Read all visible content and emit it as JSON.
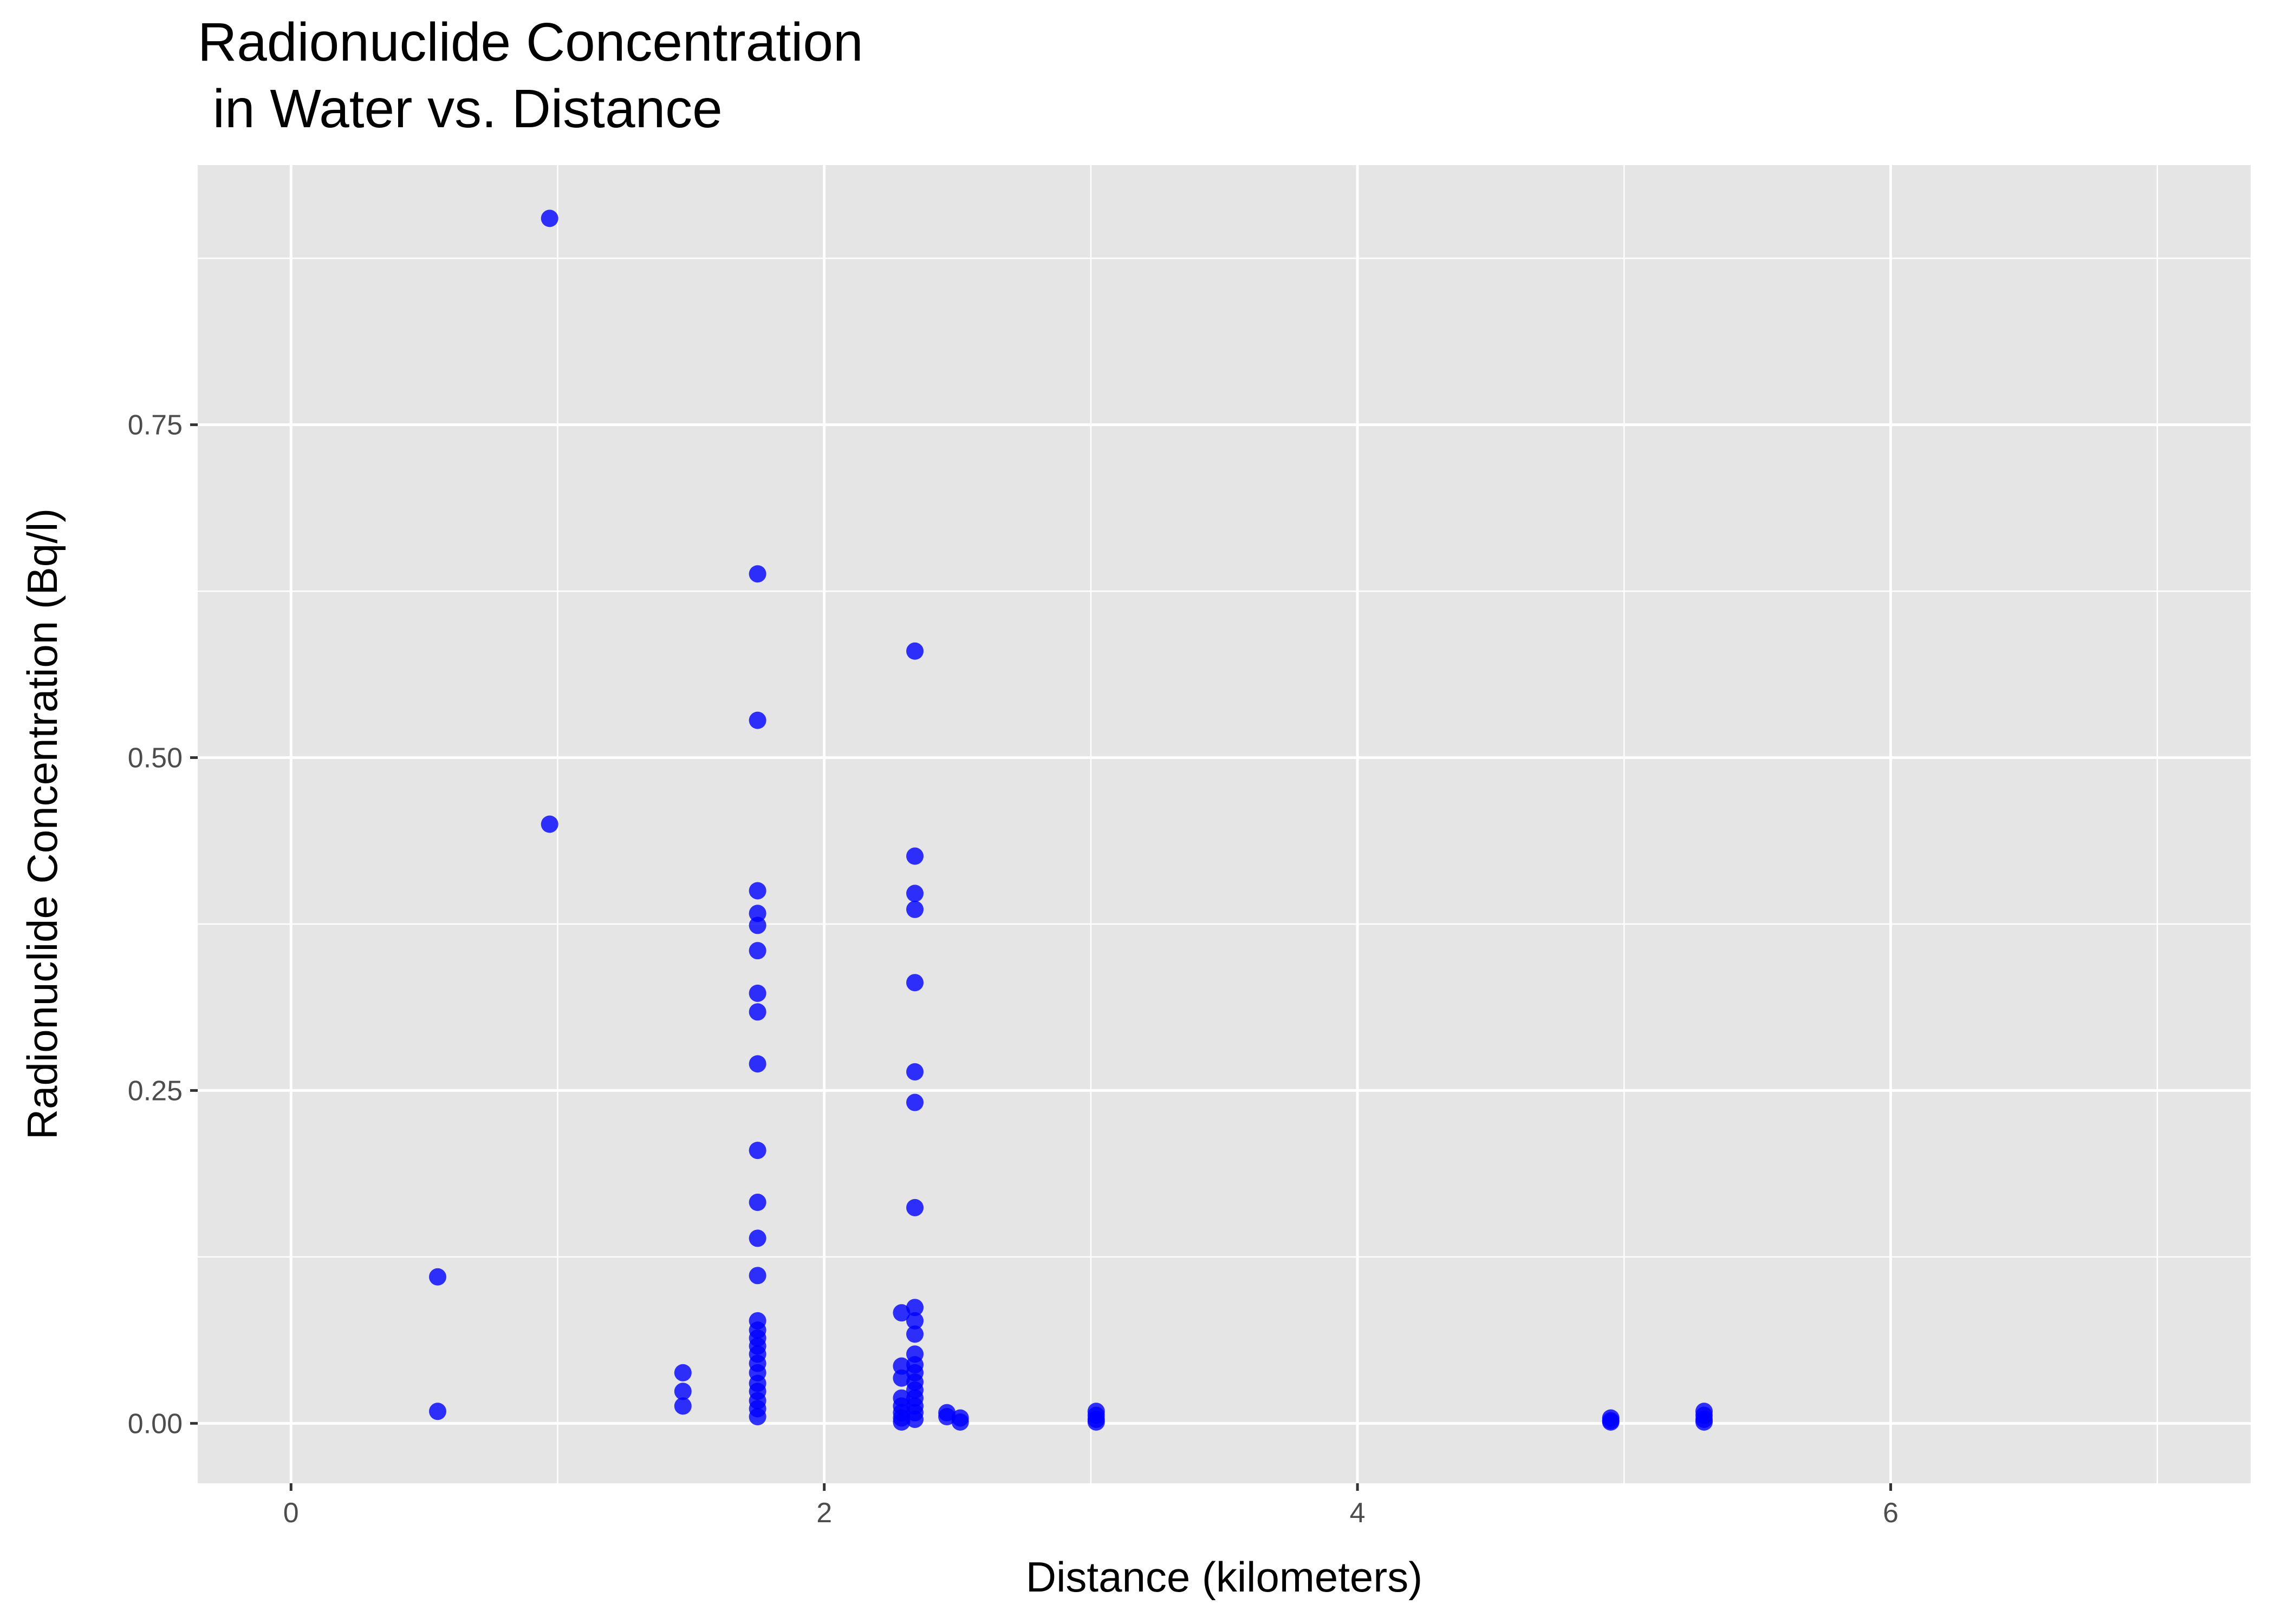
{
  "chart_data": {
    "type": "scatter",
    "title_lines": [
      "Radionuclide Concentration",
      " in Water vs. Distance"
    ],
    "xlabel": "Distance (kilometers)",
    "ylabel": "Radionuclide Concentration (Bq/l)",
    "xlim": [
      -0.35,
      7.35
    ],
    "ylim": [
      -0.045,
      0.945
    ],
    "x_ticks": [
      0,
      2,
      4,
      6
    ],
    "x_tick_labels": [
      "0",
      "2",
      "4",
      "6"
    ],
    "y_ticks": [
      0,
      0.25,
      0.5,
      0.75
    ],
    "y_tick_labels": [
      "0.00",
      "0.25",
      "0.50",
      "0.75"
    ],
    "grid": true,
    "legend": "none",
    "panel_color": "#e5e5e5",
    "grid_color": "#ffffff",
    "point_color": "#0000ff",
    "point_opacity": 0.8,
    "series": [
      {
        "points": [
          [
            0.55,
            0.11
          ],
          [
            0.55,
            0.009
          ],
          [
            0.97,
            0.905
          ],
          [
            0.97,
            0.45
          ],
          [
            1.47,
            0.038
          ],
          [
            1.47,
            0.024
          ],
          [
            1.47,
            0.013
          ],
          [
            1.75,
            0.638
          ],
          [
            1.75,
            0.528
          ],
          [
            1.75,
            0.4
          ],
          [
            1.75,
            0.383
          ],
          [
            1.75,
            0.374
          ],
          [
            1.75,
            0.355
          ],
          [
            1.75,
            0.323
          ],
          [
            1.75,
            0.309
          ],
          [
            1.75,
            0.27
          ],
          [
            1.75,
            0.205
          ],
          [
            1.75,
            0.166
          ],
          [
            1.75,
            0.139
          ],
          [
            1.75,
            0.111
          ],
          [
            1.75,
            0.077
          ],
          [
            1.75,
            0.07
          ],
          [
            1.75,
            0.064
          ],
          [
            1.75,
            0.058
          ],
          [
            1.75,
            0.052
          ],
          [
            1.75,
            0.045
          ],
          [
            1.75,
            0.038
          ],
          [
            1.75,
            0.03
          ],
          [
            1.75,
            0.024
          ],
          [
            1.75,
            0.017
          ],
          [
            1.75,
            0.011
          ],
          [
            1.75,
            0.005
          ],
          [
            2.29,
            0.083
          ],
          [
            2.29,
            0.043
          ],
          [
            2.29,
            0.034
          ],
          [
            2.29,
            0.019
          ],
          [
            2.29,
            0.013
          ],
          [
            2.29,
            0.008
          ],
          [
            2.29,
            0.004
          ],
          [
            2.29,
            0.001
          ],
          [
            2.34,
            0.58
          ],
          [
            2.34,
            0.426
          ],
          [
            2.34,
            0.398
          ],
          [
            2.34,
            0.386
          ],
          [
            2.34,
            0.331
          ],
          [
            2.34,
            0.264
          ],
          [
            2.34,
            0.241
          ],
          [
            2.34,
            0.162
          ],
          [
            2.34,
            0.087
          ],
          [
            2.34,
            0.077
          ],
          [
            2.34,
            0.067
          ],
          [
            2.34,
            0.052
          ],
          [
            2.34,
            0.044
          ],
          [
            2.34,
            0.038
          ],
          [
            2.34,
            0.031
          ],
          [
            2.34,
            0.025
          ],
          [
            2.34,
            0.019
          ],
          [
            2.34,
            0.013
          ],
          [
            2.34,
            0.008
          ],
          [
            2.34,
            0.003
          ],
          [
            2.46,
            0.008
          ],
          [
            2.46,
            0.005
          ],
          [
            2.51,
            0.004
          ],
          [
            2.51,
            0.001
          ],
          [
            3.02,
            0.009
          ],
          [
            3.02,
            0.006
          ],
          [
            3.02,
            0.003
          ],
          [
            3.02,
            0.001
          ],
          [
            4.95,
            0.004
          ],
          [
            4.95,
            0.002
          ],
          [
            4.95,
            0.001
          ],
          [
            5.3,
            0.009
          ],
          [
            5.3,
            0.006
          ],
          [
            5.3,
            0.003
          ],
          [
            5.3,
            0.001
          ]
        ]
      }
    ]
  }
}
